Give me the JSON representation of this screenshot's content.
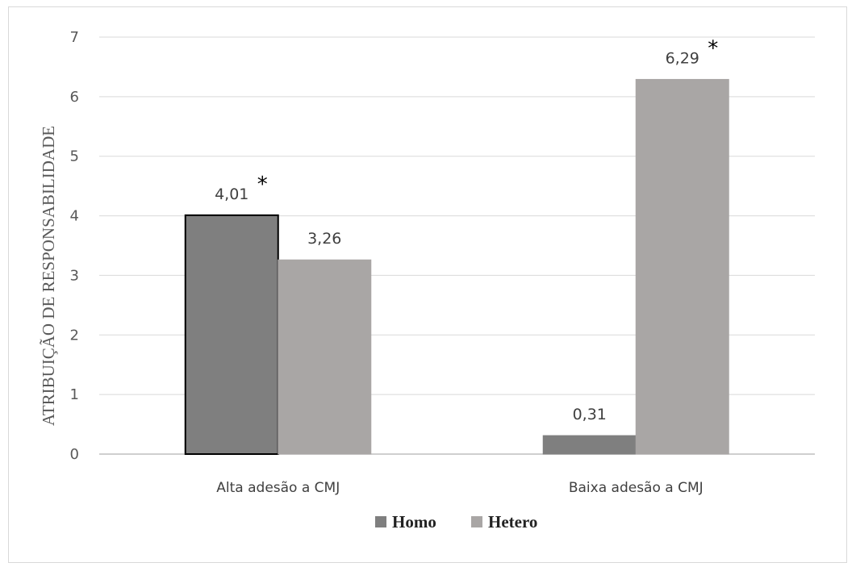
{
  "chart_data": {
    "type": "bar",
    "ylabel": "ATRIBUIÇÃO DE RESPONSABILIDADE",
    "xlabel": "",
    "ylim": [
      0,
      7
    ],
    "yticks": [
      "0",
      "1",
      "2",
      "3",
      "4",
      "5",
      "6",
      "7"
    ],
    "grid": true,
    "legend_position": "bottom",
    "categories": [
      "Alta adesão a CMJ",
      "Baixa adesão a CMJ"
    ],
    "series": [
      {
        "name": "Homo",
        "color": "#7f7f7f",
        "values": [
          4.01,
          0.31
        ],
        "labels": [
          "4,01",
          "0,31"
        ],
        "significance": [
          "*",
          ""
        ]
      },
      {
        "name": "Hetero",
        "color": "#a9a6a5",
        "values": [
          3.26,
          6.29
        ],
        "labels": [
          "3,26",
          "6,29"
        ],
        "significance": [
          "",
          "*"
        ]
      }
    ]
  }
}
